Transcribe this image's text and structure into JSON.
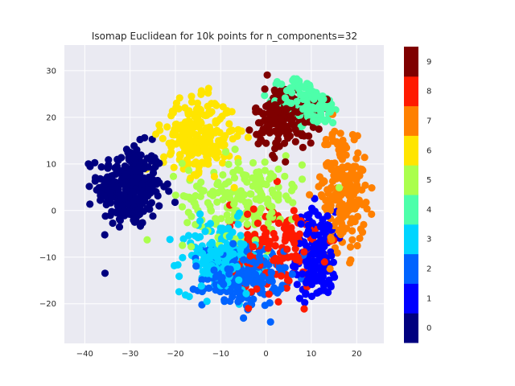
{
  "chart_data": {
    "type": "scatter",
    "title": "Isomap Euclidean for 10k points for n_components=32",
    "xlabel": "",
    "ylabel": "",
    "xlim": [
      -44.5,
      26.0
    ],
    "ylim": [
      -28.5,
      35.5
    ],
    "x_ticks": [
      -40,
      -30,
      -20,
      -10,
      0,
      10,
      20
    ],
    "y_ticks": [
      -20,
      -10,
      0,
      10,
      20,
      30
    ],
    "grid": true,
    "background": "#eaeaf2",
    "colorbar": {
      "label": "",
      "classes": [
        {
          "label": "0",
          "color": "#00007f"
        },
        {
          "label": "1",
          "color": "#0000ff"
        },
        {
          "label": "2",
          "color": "#0063ff"
        },
        {
          "label": "3",
          "color": "#00d5ff"
        },
        {
          "label": "4",
          "color": "#4dffaa"
        },
        {
          "label": "5",
          "color": "#aaff4d"
        },
        {
          "label": "6",
          "color": "#ffe500"
        },
        {
          "label": "7",
          "color": "#ff8000"
        },
        {
          "label": "8",
          "color": "#ff1a00"
        },
        {
          "label": "9",
          "color": "#7f0000"
        }
      ]
    },
    "clusters": [
      {
        "class": "0",
        "center": [
          -30,
          5
        ],
        "spread": [
          6.5,
          8
        ],
        "count": 300
      },
      {
        "class": "1",
        "center": [
          11,
          -10
        ],
        "spread": [
          4,
          9
        ],
        "count": 180
      },
      {
        "class": "2",
        "center": [
          -5,
          -14
        ],
        "spread": [
          8,
          6
        ],
        "count": 220
      },
      {
        "class": "3",
        "center": [
          -10,
          -10
        ],
        "spread": [
          8,
          7
        ],
        "count": 180
      },
      {
        "class": "4",
        "center": [
          10,
          24
        ],
        "spread": [
          6,
          5
        ],
        "count": 170
      },
      {
        "class": "5",
        "center": [
          -5,
          3
        ],
        "spread": [
          12,
          8
        ],
        "count": 200
      },
      {
        "class": "6",
        "center": [
          -15,
          16
        ],
        "spread": [
          7,
          7
        ],
        "count": 260
      },
      {
        "class": "7",
        "center": [
          17,
          5
        ],
        "spread": [
          4.5,
          12
        ],
        "count": 200
      },
      {
        "class": "8",
        "center": [
          2,
          -8
        ],
        "spread": [
          9,
          9
        ],
        "count": 150
      },
      {
        "class": "9",
        "center": [
          4,
          20
        ],
        "spread": [
          6,
          6
        ],
        "count": 170
      }
    ]
  }
}
